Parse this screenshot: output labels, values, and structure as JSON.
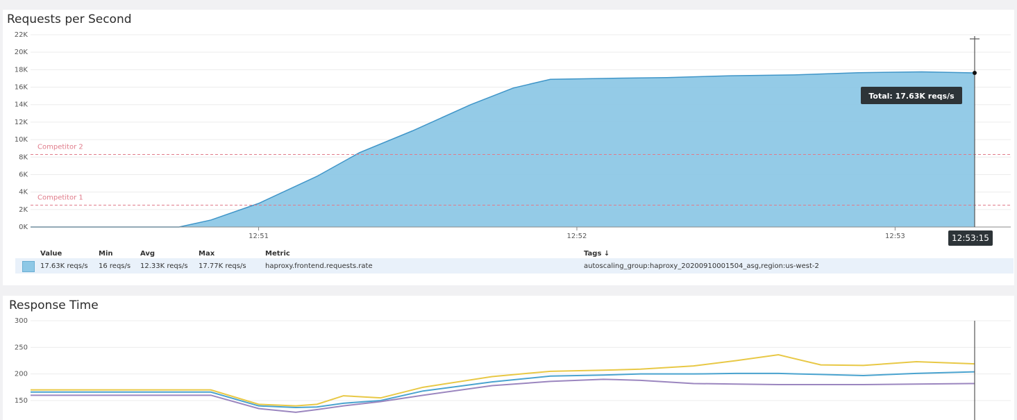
{
  "panels": [
    {
      "title": "Requests per Second"
    },
    {
      "title": "Response Time"
    }
  ],
  "legend": {
    "headers": {
      "value": "Value",
      "min": "Min",
      "avg": "Avg",
      "max": "Max",
      "metric": "Metric",
      "tags": "Tags ↓"
    },
    "row": {
      "value": "17.63K reqs/s",
      "min": "16 reqs/s",
      "avg": "12.33K reqs/s",
      "max": "17.77K reqs/s",
      "metric": "haproxy.frontend.requests.rate",
      "tags": "autoscaling_group:haproxy_20200910001504_asg,region:us-west-2",
      "color": "#8ec8e6"
    }
  },
  "chart_data": [
    {
      "type": "area",
      "title": "Requests per Second",
      "ylim": [
        0,
        22000
      ],
      "y_ticks": [
        "0K",
        "2K",
        "4K",
        "6K",
        "8K",
        "10K",
        "12K",
        "14K",
        "16K",
        "18K",
        "20K",
        "22K"
      ],
      "xlim": [
        "12:50:17",
        "12:53:15"
      ],
      "x_ticks": [
        "12:51",
        "12:52",
        "12:53"
      ],
      "grid": true,
      "x": [
        "12:50:17",
        "12:50:27",
        "12:50:37",
        "12:50:45",
        "12:50:51",
        "12:51:00",
        "12:51:11",
        "12:51:19",
        "12:51:29",
        "12:51:40",
        "12:51:48",
        "12:51:55",
        "12:52:05",
        "12:52:17",
        "12:52:29",
        "12:52:41",
        "12:52:53",
        "12:53:05",
        "12:53:15"
      ],
      "series": [
        {
          "color": "#8ec8e6",
          "values": [
            0,
            0,
            0,
            0,
            800,
            2700,
            5800,
            8500,
            11000,
            14000,
            15900,
            16900,
            17000,
            17100,
            17300,
            17400,
            17650,
            17750,
            17630
          ]
        }
      ],
      "markers": [
        {
          "label": "Competitor 2",
          "value": 8300,
          "color": "#e07b8a"
        },
        {
          "label": "Competitor 1",
          "value": 2500,
          "color": "#e07b8a"
        }
      ],
      "annotations": {
        "tooltip": "Total: 17.63K reqs/s",
        "cursor_time": "12:53:15"
      }
    },
    {
      "type": "line",
      "title": "Response Time",
      "ylim": [
        120,
        300
      ],
      "y_ticks": [
        "150",
        "200",
        "250",
        "300"
      ],
      "xlim": [
        "12:50:17",
        "12:53:15"
      ],
      "grid": true,
      "x": [
        "12:50:17",
        "12:50:31",
        "12:50:51",
        "12:51:00",
        "12:51:07",
        "12:51:11",
        "12:51:16",
        "12:51:23",
        "12:51:31",
        "12:51:44",
        "12:51:55",
        "12:52:05",
        "12:52:12",
        "12:52:22",
        "12:52:30",
        "12:52:38",
        "12:52:46",
        "12:52:54",
        "12:53:04",
        "12:53:15"
      ],
      "series": [
        {
          "color": "#e8c845",
          "values": [
            170,
            170,
            170,
            143,
            140,
            143,
            159,
            155,
            175,
            195,
            205,
            207,
            209,
            215,
            225,
            236,
            217,
            216,
            223,
            219
          ]
        },
        {
          "color": "#4aa3cf",
          "values": [
            166,
            166,
            166,
            140,
            137,
            138,
            145,
            150,
            168,
            185,
            196,
            198,
            200,
            200,
            201,
            201,
            199,
            197,
            201,
            204
          ]
        },
        {
          "color": "#9b86bf",
          "values": [
            160,
            160,
            160,
            135,
            128,
            133,
            140,
            148,
            160,
            178,
            186,
            190,
            188,
            182,
            181,
            180,
            180,
            180,
            181,
            182
          ]
        }
      ]
    }
  ]
}
